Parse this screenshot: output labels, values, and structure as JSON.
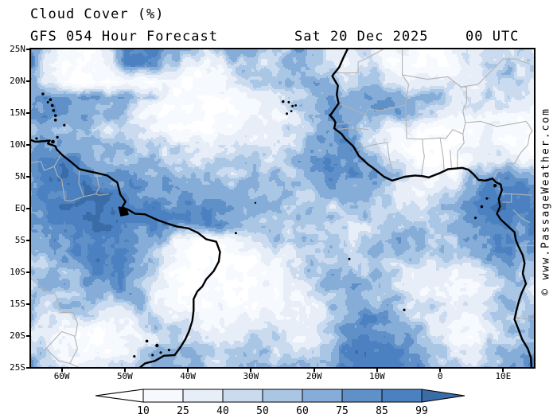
{
  "header": {
    "title": "Cloud Cover (%)",
    "subtitle": "GFS 054 Hour Forecast",
    "date": "Sat 20 Dec 2025",
    "time": "00 UTC"
  },
  "watermark": "© www.PassageWeather.com",
  "axes": {
    "lat_labels": [
      "25N",
      "20N",
      "15N",
      "10N",
      "5N",
      "EQ",
      "5S",
      "10S",
      "15S",
      "20S",
      "25S"
    ],
    "lon_labels": [
      "60W",
      "50W",
      "40W",
      "30W",
      "20W",
      "10W",
      "0",
      "10E"
    ]
  },
  "colorbar": {
    "labels": [
      "10",
      "25",
      "40",
      "50",
      "60",
      "75",
      "85",
      "99"
    ],
    "segment_colors": [
      "#f6f9fd",
      "#e8eef8",
      "#cadbf0",
      "#a9c6e5",
      "#86add8",
      "#5f90c8",
      "#4c81c1"
    ],
    "left_arrow_color": "#ffffff",
    "right_arrow_color": "#3a6ca8",
    "outline_color": "#000000"
  },
  "chart_data": {
    "type": "heatmap",
    "title": "Cloud Cover (%)",
    "subtitle": "GFS 054 Hour Forecast",
    "valid_time": "Sat 20 Dec 2025 00 UTC",
    "units": "%",
    "lon_range": [
      -65,
      15
    ],
    "lat_range": [
      -25,
      25
    ],
    "levels": [
      10,
      25,
      40,
      50,
      60,
      75,
      85,
      99
    ],
    "palette": [
      "#ffffff",
      "#f6f9fd",
      "#e8eef8",
      "#cadbf0",
      "#a9c6e5",
      "#86add8",
      "#5f90c8",
      "#4c81c1",
      "#3a6ca8"
    ],
    "grid_step_degrees": 2.5,
    "grid_origin": "rows start at 25N going south, cols start at 65W going east",
    "cloud_cover_grid": [
      [
        95,
        40,
        5,
        5,
        5,
        40,
        95,
        95,
        90,
        70,
        55,
        40,
        55,
        65,
        60,
        55,
        60,
        70,
        55,
        40,
        30,
        45,
        30,
        20,
        25,
        15,
        10,
        30,
        45,
        40,
        35,
        45,
        40
      ],
      [
        90,
        30,
        5,
        5,
        5,
        15,
        70,
        80,
        70,
        45,
        30,
        25,
        35,
        45,
        50,
        45,
        55,
        65,
        55,
        40,
        35,
        50,
        40,
        15,
        10,
        10,
        15,
        20,
        35,
        50,
        55,
        45,
        40
      ],
      [
        70,
        30,
        10,
        5,
        5,
        10,
        15,
        10,
        10,
        10,
        10,
        15,
        25,
        35,
        45,
        45,
        50,
        60,
        65,
        55,
        45,
        55,
        50,
        30,
        25,
        35,
        45,
        30,
        25,
        40,
        55,
        45,
        35
      ],
      [
        80,
        85,
        85,
        80,
        75,
        70,
        65,
        55,
        40,
        15,
        5,
        5,
        5,
        15,
        30,
        40,
        45,
        55,
        70,
        75,
        60,
        70,
        75,
        65,
        60,
        70,
        60,
        40,
        35,
        50,
        40,
        30,
        25
      ],
      [
        70,
        80,
        80,
        75,
        70,
        60,
        50,
        30,
        10,
        5,
        5,
        5,
        5,
        10,
        20,
        30,
        35,
        45,
        60,
        80,
        70,
        60,
        65,
        70,
        65,
        55,
        45,
        35,
        30,
        35,
        30,
        20,
        15
      ],
      [
        55,
        60,
        55,
        50,
        45,
        40,
        40,
        35,
        25,
        15,
        10,
        10,
        15,
        20,
        30,
        30,
        35,
        40,
        55,
        75,
        80,
        60,
        40,
        25,
        20,
        15,
        10,
        10,
        15,
        20,
        15,
        10,
        10
      ],
      [
        80,
        75,
        70,
        65,
        60,
        65,
        60,
        55,
        50,
        45,
        40,
        35,
        35,
        40,
        40,
        40,
        45,
        50,
        65,
        85,
        80,
        60,
        40,
        15,
        10,
        5,
        5,
        10,
        15,
        25,
        20,
        15,
        10
      ],
      [
        90,
        88,
        85,
        75,
        70,
        70,
        65,
        60,
        55,
        50,
        45,
        45,
        45,
        50,
        50,
        50,
        55,
        60,
        75,
        85,
        80,
        70,
        55,
        35,
        20,
        10,
        10,
        15,
        25,
        40,
        35,
        30,
        25
      ],
      [
        85,
        95,
        95,
        90,
        85,
        80,
        80,
        75,
        70,
        65,
        60,
        55,
        55,
        55,
        55,
        55,
        55,
        60,
        70,
        80,
        80,
        75,
        65,
        55,
        45,
        20,
        20,
        25,
        55,
        70,
        80,
        70,
        60
      ],
      [
        80,
        90,
        95,
        95,
        95,
        90,
        88,
        85,
        80,
        78,
        75,
        70,
        65,
        62,
        60,
        55,
        58,
        55,
        60,
        65,
        60,
        60,
        55,
        50,
        25,
        25,
        30,
        55,
        70,
        85,
        90,
        85,
        80
      ],
      [
        75,
        85,
        95,
        95,
        95,
        95,
        95,
        90,
        85,
        85,
        85,
        85,
        80,
        70,
        65,
        60,
        60,
        55,
        50,
        50,
        45,
        50,
        45,
        45,
        40,
        45,
        50,
        60,
        75,
        90,
        95,
        90,
        85
      ],
      [
        70,
        80,
        90,
        95,
        95,
        95,
        90,
        85,
        80,
        80,
        80,
        85,
        85,
        75,
        60,
        55,
        50,
        45,
        45,
        40,
        40,
        45,
        50,
        55,
        50,
        55,
        60,
        65,
        80,
        90,
        90,
        85,
        80
      ],
      [
        60,
        70,
        80,
        90,
        95,
        90,
        85,
        80,
        70,
        40,
        15,
        10,
        15,
        25,
        40,
        45,
        50,
        50,
        55,
        50,
        45,
        50,
        55,
        60,
        65,
        60,
        55,
        60,
        70,
        80,
        85,
        80,
        70
      ],
      [
        55,
        60,
        70,
        80,
        90,
        90,
        85,
        75,
        50,
        20,
        5,
        5,
        5,
        5,
        10,
        20,
        30,
        45,
        55,
        55,
        50,
        55,
        60,
        55,
        50,
        45,
        50,
        55,
        65,
        75,
        80,
        75,
        65
      ],
      [
        50,
        55,
        60,
        70,
        80,
        85,
        80,
        70,
        40,
        10,
        5,
        5,
        5,
        5,
        5,
        15,
        25,
        35,
        50,
        60,
        65,
        60,
        55,
        45,
        35,
        30,
        35,
        30,
        25,
        35,
        50,
        60,
        55
      ],
      [
        55,
        60,
        55,
        60,
        70,
        75,
        70,
        60,
        35,
        10,
        5,
        5,
        5,
        10,
        10,
        15,
        20,
        30,
        45,
        60,
        70,
        65,
        60,
        50,
        35,
        25,
        25,
        25,
        20,
        30,
        45,
        55,
        50
      ],
      [
        70,
        45,
        55,
        60,
        65,
        40,
        50,
        55,
        35,
        20,
        10,
        10,
        15,
        15,
        15,
        20,
        20,
        20,
        35,
        50,
        65,
        70,
        65,
        60,
        50,
        45,
        40,
        35,
        30,
        40,
        55,
        60,
        55
      ],
      [
        55,
        45,
        35,
        40,
        35,
        20,
        30,
        45,
        50,
        40,
        30,
        25,
        30,
        35,
        30,
        25,
        20,
        15,
        30,
        50,
        70,
        80,
        75,
        65,
        55,
        45,
        35,
        25,
        20,
        30,
        45,
        55,
        60
      ],
      [
        45,
        30,
        15,
        10,
        10,
        10,
        15,
        30,
        50,
        50,
        45,
        40,
        35,
        40,
        55,
        50,
        35,
        25,
        35,
        55,
        75,
        85,
        85,
        80,
        70,
        55,
        40,
        25,
        20,
        35,
        50,
        60,
        65
      ],
      [
        60,
        45,
        25,
        15,
        15,
        15,
        25,
        40,
        55,
        60,
        55,
        50,
        45,
        50,
        60,
        55,
        45,
        40,
        45,
        60,
        80,
        90,
        90,
        85,
        75,
        65,
        50,
        40,
        35,
        45,
        60,
        65,
        70
      ],
      [
        80,
        60,
        45,
        35,
        35,
        40,
        45,
        55,
        65,
        70,
        65,
        60,
        55,
        60,
        70,
        65,
        60,
        55,
        60,
        70,
        85,
        95,
        95,
        90,
        80,
        70,
        60,
        55,
        50,
        60,
        70,
        75,
        80
      ]
    ]
  }
}
